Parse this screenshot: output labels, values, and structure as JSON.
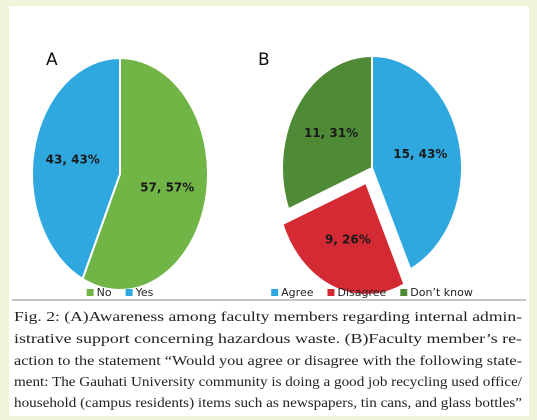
{
  "chart_data": [
    {
      "type": "pie",
      "title": "A",
      "categories": [
        "No",
        "Yes"
      ],
      "values": [
        57,
        43
      ],
      "value_labels": [
        "57, 57%",
        "43, 43%"
      ],
      "colors": [
        "#72b547",
        "#2fa8e0"
      ],
      "explode": [
        false,
        false
      ],
      "legend": "bottom"
    },
    {
      "type": "pie",
      "title": "B",
      "categories": [
        "Agree",
        "Disagree",
        "Don’t know"
      ],
      "values": [
        43,
        26,
        31
      ],
      "value_labels": [
        "15, 43%",
        "9, 26%",
        "11, 31%"
      ],
      "colors": [
        "#2fa8e0",
        "#d42a33",
        "#4f8a36"
      ],
      "explode": [
        false,
        true,
        false
      ],
      "legend": "bottom"
    }
  ],
  "caption": [
    "Fig. 2: (A)Awareness among faculty members regarding internal admin-",
    "istrative support concerning hazardous waste. (B)Faculty member’s re-",
    "action to the statement “Would you agree or disagree with the following state-",
    "ment: The Gauhati University community is doing a good job recycling used office/",
    "household (campus residents) items such as newspapers, tin cans, and glass bottles”"
  ]
}
